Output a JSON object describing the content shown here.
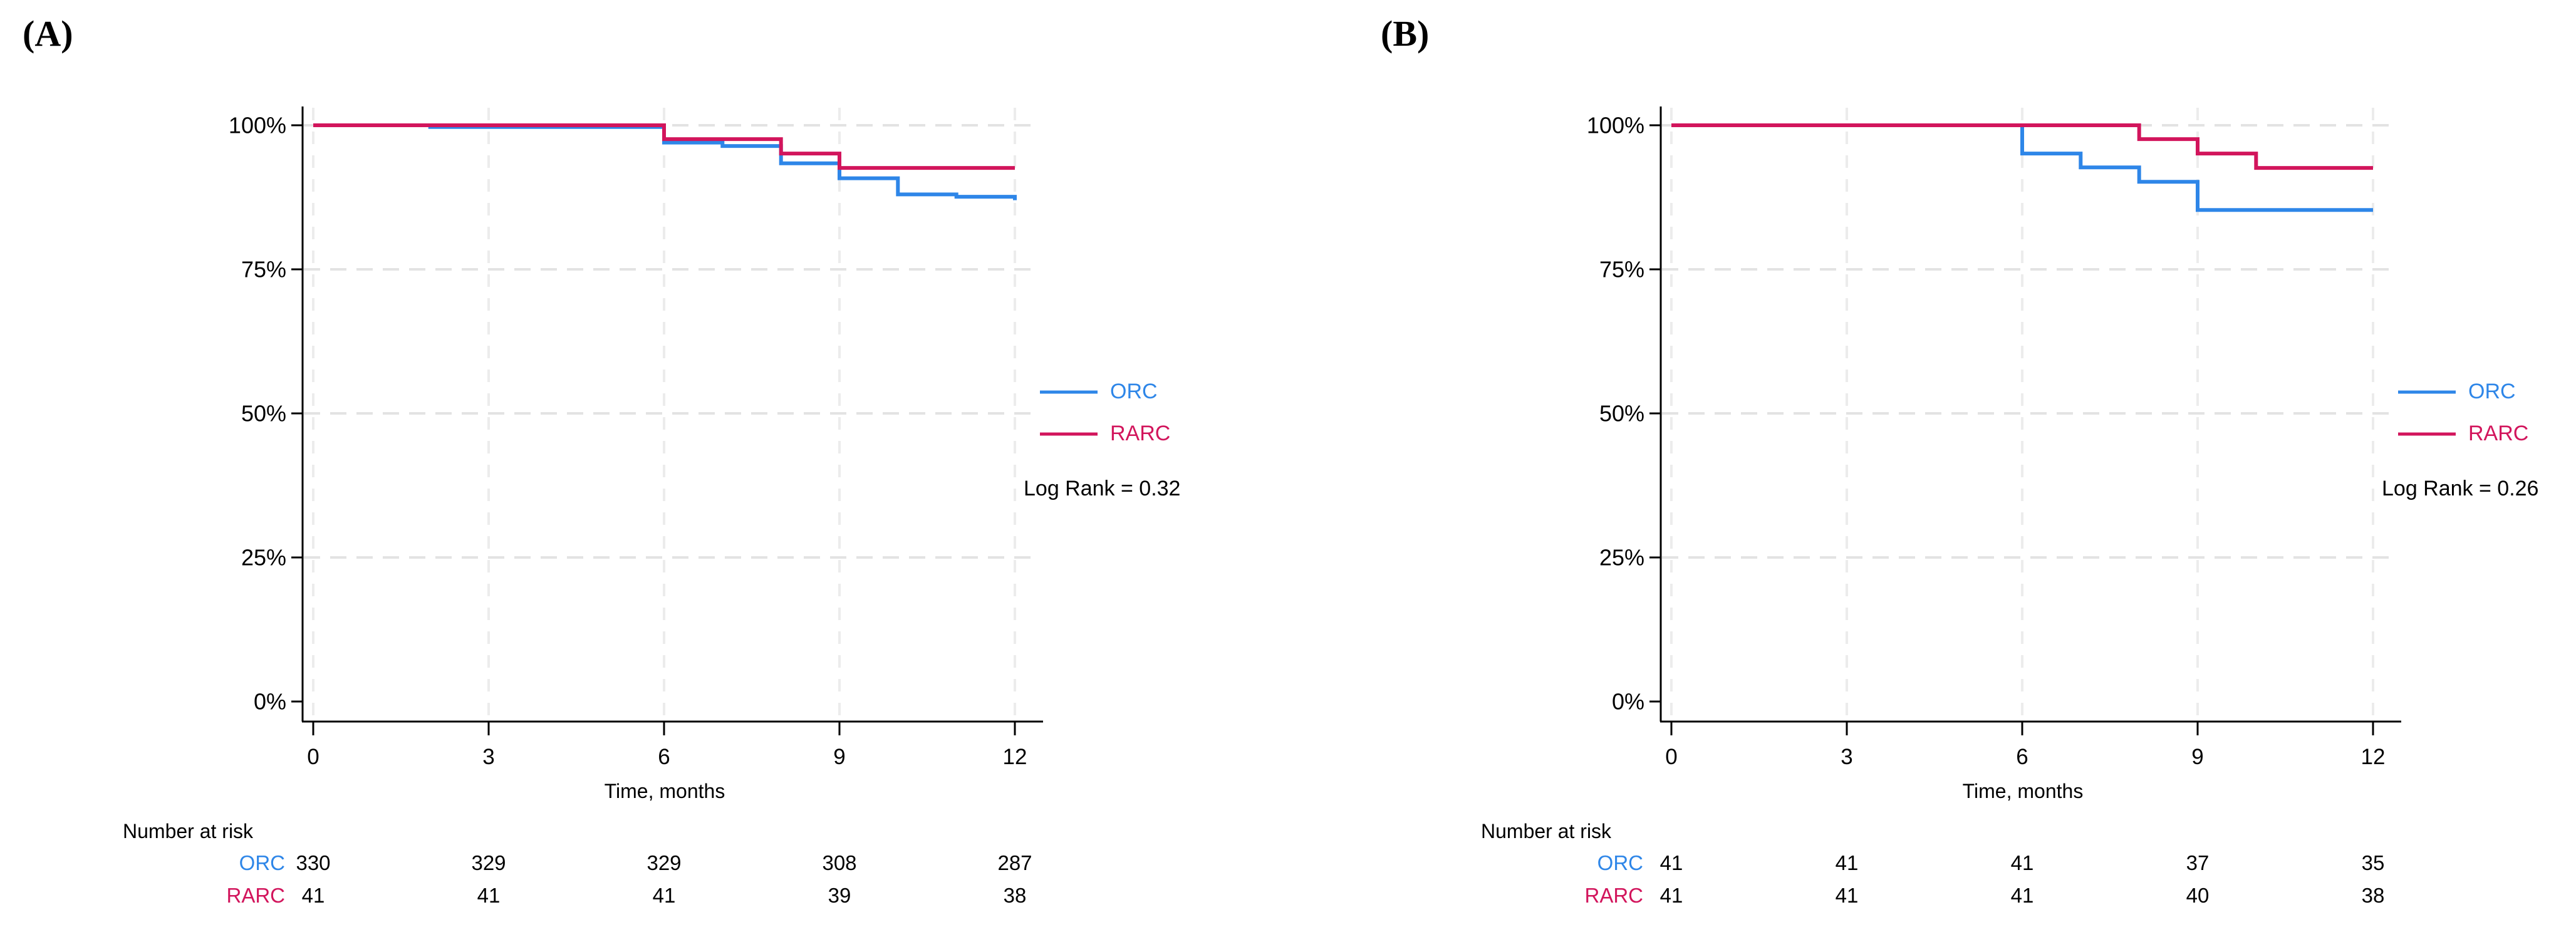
{
  "colors": {
    "orc": "#2E86E8",
    "rarc": "#D2155C",
    "axis": "#000000",
    "grid_h": "#E3E3E3",
    "grid_v": "#ECECEC",
    "text": "#000000",
    "background": "#FFFFFF"
  },
  "panels": [
    {
      "label": "(A)",
      "x_title": "Time, months",
      "legend": {
        "items": [
          {
            "label": "ORC",
            "color": "#2E86E8"
          },
          {
            "label": "RARC",
            "color": "#D2155C"
          }
        ],
        "stat": "Log Rank = 0.32"
      },
      "risk_table": {
        "title": "Number at risk",
        "time_points": [
          0,
          3,
          6,
          9,
          12
        ],
        "rows": [
          {
            "label": "ORC",
            "color": "#2E86E8",
            "values": [
              "330",
              "329",
              "329",
              "308",
              "287"
            ]
          },
          {
            "label": "RARC",
            "color": "#D2155C",
            "values": [
              "41",
              "41",
              "41",
              "39",
              "38"
            ]
          }
        ]
      }
    },
    {
      "label": "(B)",
      "x_title": "Time, months",
      "legend": {
        "items": [
          {
            "label": "ORC",
            "color": "#2E86E8"
          },
          {
            "label": "RARC",
            "color": "#D2155C"
          }
        ],
        "stat": "Log Rank = 0.26"
      },
      "risk_table": {
        "title": "Number at risk",
        "time_points": [
          0,
          3,
          6,
          9,
          12
        ],
        "rows": [
          {
            "label": "ORC",
            "color": "#2E86E8",
            "values": [
              "41",
              "41",
              "41",
              "37",
              "35"
            ]
          },
          {
            "label": "RARC",
            "color": "#D2155C",
            "values": [
              "41",
              "41",
              "41",
              "40",
              "38"
            ]
          }
        ]
      }
    }
  ],
  "chart_data": [
    {
      "type": "line",
      "subtype": "kaplan-meier-step",
      "title": "",
      "xlabel": "Time, months",
      "ylabel": "",
      "xlim": [
        0,
        12
      ],
      "ylim": [
        0,
        100
      ],
      "x_ticks": [
        0,
        3,
        6,
        9,
        12
      ],
      "y_tick_values": [
        0,
        25,
        50,
        75,
        100
      ],
      "y_tick_labels": [
        "0%",
        "25%",
        "50%",
        "75%",
        "100%"
      ],
      "grid": true,
      "legend_position": "right",
      "annotation": "Log Rank = 0.32",
      "series": [
        {
          "name": "ORC",
          "color": "#2E86E8",
          "steps": [
            [
              0,
              100
            ],
            [
              2,
              99.7
            ],
            [
              6,
              97.0
            ],
            [
              7,
              96.4
            ],
            [
              8,
              93.4
            ],
            [
              9,
              90.8
            ],
            [
              10,
              88.0
            ],
            [
              11,
              87.6
            ],
            [
              12,
              87.0
            ]
          ]
        },
        {
          "name": "RARC",
          "color": "#D2155C",
          "steps": [
            [
              0,
              100
            ],
            [
              6,
              97.6
            ],
            [
              8,
              95.1
            ],
            [
              9,
              92.6
            ],
            [
              12,
              92.6
            ]
          ]
        }
      ]
    },
    {
      "type": "line",
      "subtype": "kaplan-meier-step",
      "title": "",
      "xlabel": "Time, months",
      "ylabel": "",
      "xlim": [
        0,
        12
      ],
      "ylim": [
        0,
        100
      ],
      "x_ticks": [
        0,
        3,
        6,
        9,
        12
      ],
      "y_tick_values": [
        0,
        25,
        50,
        75,
        100
      ],
      "y_tick_labels": [
        "0%",
        "25%",
        "50%",
        "75%",
        "100%"
      ],
      "grid": true,
      "legend_position": "right",
      "annotation": "Log Rank = 0.26",
      "series": [
        {
          "name": "ORC",
          "color": "#2E86E8",
          "steps": [
            [
              0,
              100
            ],
            [
              6,
              95.1
            ],
            [
              7,
              92.7
            ],
            [
              8,
              90.2
            ],
            [
              9,
              85.3
            ],
            [
              12,
              85.3
            ]
          ]
        },
        {
          "name": "RARC",
          "color": "#D2155C",
          "steps": [
            [
              0,
              100
            ],
            [
              8,
              97.6
            ],
            [
              9,
              95.1
            ],
            [
              10,
              92.6
            ],
            [
              12,
              92.6
            ]
          ]
        }
      ]
    }
  ]
}
